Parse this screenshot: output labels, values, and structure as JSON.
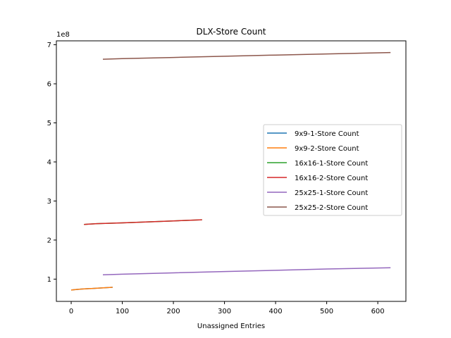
{
  "chart_data": {
    "type": "line",
    "title": "DLX-Store Count",
    "xlabel": "Unassigned Entries",
    "ylabel": "",
    "y_multiplier_label": "1e8",
    "x_ticks": [
      0,
      100,
      200,
      300,
      400,
      500,
      600
    ],
    "y_ticks": [
      1,
      2,
      3,
      4,
      5,
      6,
      7
    ],
    "xlim": [
      -29,
      655
    ],
    "ylim": [
      0.43,
      7.1
    ],
    "grid": false,
    "legend_position": "center-right",
    "series": [
      {
        "name": "9x9-1-Store Count",
        "color": "#1f77b4",
        "x": [
          0,
          10,
          20,
          40,
          60,
          81
        ],
        "y": [
          0.72,
          0.735,
          0.745,
          0.76,
          0.775,
          0.79
        ]
      },
      {
        "name": "9x9-2-Store Count",
        "color": "#ff7f0e",
        "x": [
          0,
          10,
          20,
          40,
          60,
          81
        ],
        "y": [
          0.72,
          0.735,
          0.745,
          0.76,
          0.775,
          0.79
        ]
      },
      {
        "name": "16x16-1-Store Count",
        "color": "#2ca02c",
        "x": [
          25,
          50,
          100,
          150,
          200,
          256
        ],
        "y": [
          2.4,
          2.42,
          2.44,
          2.465,
          2.49,
          2.52
        ]
      },
      {
        "name": "16x16-2-Store Count",
        "color": "#d62728",
        "x": [
          25,
          50,
          100,
          150,
          200,
          256
        ],
        "y": [
          2.4,
          2.42,
          2.44,
          2.465,
          2.49,
          2.52
        ]
      },
      {
        "name": "25x25-1-Store Count",
        "color": "#9467bd",
        "x": [
          62,
          100,
          200,
          300,
          400,
          500,
          625
        ],
        "y": [
          1.11,
          1.125,
          1.16,
          1.195,
          1.225,
          1.26,
          1.29
        ]
      },
      {
        "name": "25x25-2-Store Count",
        "color": "#8c564b",
        "x": [
          62,
          100,
          200,
          300,
          400,
          500,
          625
        ],
        "y": [
          6.63,
          6.645,
          6.675,
          6.705,
          6.735,
          6.765,
          6.8
        ]
      }
    ]
  }
}
